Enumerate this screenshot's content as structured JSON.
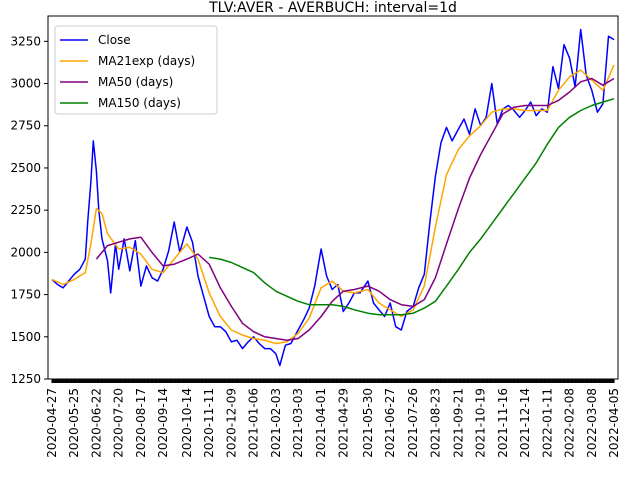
{
  "chart_data": {
    "type": "line",
    "title": "TLV:AVER - AVERBUCH: interval=1d",
    "xlabel": "",
    "ylabel": "",
    "xlim": [
      "2020-04-22",
      "2022-04-10"
    ],
    "ylim": [
      1250,
      3400
    ],
    "x_ticks": [
      "2020-04-27",
      "2020-05-25",
      "2020-06-22",
      "2020-07-20",
      "2020-08-17",
      "2020-09-14",
      "2020-10-14",
      "2020-11-11",
      "2020-12-09",
      "2021-01-06",
      "2021-02-03",
      "2021-03-03",
      "2021-04-01",
      "2021-04-29",
      "2021-05-30",
      "2021-06-27",
      "2021-07-26",
      "2021-08-23",
      "2021-09-21",
      "2021-10-19",
      "2021-11-16",
      "2021-12-14",
      "2022-01-11",
      "2022-02-08",
      "2022-03-08",
      "2022-04-05"
    ],
    "y_ticks": [
      1250,
      1500,
      1750,
      2000,
      2250,
      2500,
      2750,
      3000,
      3250
    ],
    "grid": false,
    "legend_position": "top-left",
    "series": [
      {
        "name": "Close",
        "color": "#0000ff",
        "points": [
          [
            "2020-04-27",
            1840
          ],
          [
            "2020-05-04",
            1810
          ],
          [
            "2020-05-11",
            1790
          ],
          [
            "2020-05-18",
            1830
          ],
          [
            "2020-05-25",
            1870
          ],
          [
            "2020-06-01",
            1900
          ],
          [
            "2020-06-08",
            1960
          ],
          [
            "2020-06-11",
            2180
          ],
          [
            "2020-06-15",
            2420
          ],
          [
            "2020-06-18",
            2660
          ],
          [
            "2020-06-22",
            2480
          ],
          [
            "2020-06-25",
            2250
          ],
          [
            "2020-06-29",
            2080
          ],
          [
            "2020-07-06",
            1950
          ],
          [
            "2020-07-10",
            1760
          ],
          [
            "2020-07-16",
            2050
          ],
          [
            "2020-07-20",
            1900
          ],
          [
            "2020-07-27",
            2080
          ],
          [
            "2020-08-03",
            1890
          ],
          [
            "2020-08-10",
            2070
          ],
          [
            "2020-08-17",
            1800
          ],
          [
            "2020-08-24",
            1920
          ],
          [
            "2020-08-31",
            1850
          ],
          [
            "2020-09-07",
            1830
          ],
          [
            "2020-09-14",
            1900
          ],
          [
            "2020-09-21",
            2010
          ],
          [
            "2020-09-28",
            2180
          ],
          [
            "2020-10-05",
            2000
          ],
          [
            "2020-10-14",
            2150
          ],
          [
            "2020-10-21",
            2060
          ],
          [
            "2020-10-28",
            1860
          ],
          [
            "2020-11-04",
            1740
          ],
          [
            "2020-11-11",
            1620
          ],
          [
            "2020-11-18",
            1560
          ],
          [
            "2020-11-25",
            1560
          ],
          [
            "2020-12-02",
            1530
          ],
          [
            "2020-12-09",
            1470
          ],
          [
            "2020-12-16",
            1480
          ],
          [
            "2020-12-23",
            1430
          ],
          [
            "2020-12-30",
            1470
          ],
          [
            "2021-01-06",
            1500
          ],
          [
            "2021-01-13",
            1460
          ],
          [
            "2021-01-20",
            1430
          ],
          [
            "2021-01-27",
            1430
          ],
          [
            "2021-02-03",
            1400
          ],
          [
            "2021-02-08",
            1330
          ],
          [
            "2021-02-15",
            1450
          ],
          [
            "2021-02-22",
            1460
          ],
          [
            "2021-03-03",
            1540
          ],
          [
            "2021-03-10",
            1600
          ],
          [
            "2021-03-17",
            1670
          ],
          [
            "2021-03-24",
            1800
          ],
          [
            "2021-04-01",
            2020
          ],
          [
            "2021-04-08",
            1860
          ],
          [
            "2021-04-15",
            1780
          ],
          [
            "2021-04-22",
            1810
          ],
          [
            "2021-04-29",
            1650
          ],
          [
            "2021-05-06",
            1700
          ],
          [
            "2021-05-13",
            1760
          ],
          [
            "2021-05-20",
            1760
          ],
          [
            "2021-05-30",
            1830
          ],
          [
            "2021-06-06",
            1700
          ],
          [
            "2021-06-13",
            1660
          ],
          [
            "2021-06-20",
            1620
          ],
          [
            "2021-06-27",
            1700
          ],
          [
            "2021-07-04",
            1560
          ],
          [
            "2021-07-11",
            1540
          ],
          [
            "2021-07-18",
            1650
          ],
          [
            "2021-07-26",
            1680
          ],
          [
            "2021-08-02",
            1790
          ],
          [
            "2021-08-09",
            1870
          ],
          [
            "2021-08-16",
            2180
          ],
          [
            "2021-08-23",
            2450
          ],
          [
            "2021-08-30",
            2650
          ],
          [
            "2021-09-06",
            2740
          ],
          [
            "2021-09-13",
            2660
          ],
          [
            "2021-09-21",
            2730
          ],
          [
            "2021-09-28",
            2790
          ],
          [
            "2021-10-05",
            2700
          ],
          [
            "2021-10-12",
            2850
          ],
          [
            "2021-10-19",
            2750
          ],
          [
            "2021-10-26",
            2800
          ],
          [
            "2021-11-02",
            3000
          ],
          [
            "2021-11-09",
            2760
          ],
          [
            "2021-11-16",
            2850
          ],
          [
            "2021-11-23",
            2870
          ],
          [
            "2021-11-30",
            2840
          ],
          [
            "2021-12-07",
            2800
          ],
          [
            "2021-12-14",
            2840
          ],
          [
            "2021-12-21",
            2890
          ],
          [
            "2021-12-28",
            2810
          ],
          [
            "2022-01-04",
            2850
          ],
          [
            "2022-01-11",
            2830
          ],
          [
            "2022-01-18",
            3100
          ],
          [
            "2022-01-25",
            2970
          ],
          [
            "2022-02-01",
            3230
          ],
          [
            "2022-02-08",
            3150
          ],
          [
            "2022-02-15",
            2980
          ],
          [
            "2022-02-22",
            3320
          ],
          [
            "2022-03-01",
            3050
          ],
          [
            "2022-03-08",
            2960
          ],
          [
            "2022-03-15",
            2830
          ],
          [
            "2022-03-22",
            2880
          ],
          [
            "2022-03-29",
            3280
          ],
          [
            "2022-04-05",
            3260
          ]
        ]
      },
      {
        "name": "MA21exp (days)",
        "color": "#ffa500",
        "points": [
          [
            "2020-04-27",
            1840
          ],
          [
            "2020-05-11",
            1810
          ],
          [
            "2020-05-25",
            1840
          ],
          [
            "2020-06-08",
            1880
          ],
          [
            "2020-06-15",
            2050
          ],
          [
            "2020-06-22",
            2260
          ],
          [
            "2020-06-29",
            2230
          ],
          [
            "2020-07-06",
            2110
          ],
          [
            "2020-07-20",
            2020
          ],
          [
            "2020-08-03",
            2030
          ],
          [
            "2020-08-17",
            1990
          ],
          [
            "2020-08-31",
            1900
          ],
          [
            "2020-09-14",
            1880
          ],
          [
            "2020-09-28",
            1960
          ],
          [
            "2020-10-14",
            2050
          ],
          [
            "2020-10-28",
            1960
          ],
          [
            "2020-11-11",
            1760
          ],
          [
            "2020-11-25",
            1620
          ],
          [
            "2020-12-09",
            1540
          ],
          [
            "2020-12-23",
            1510
          ],
          [
            "2021-01-06",
            1490
          ],
          [
            "2021-01-20",
            1480
          ],
          [
            "2021-02-03",
            1460
          ],
          [
            "2021-02-17",
            1470
          ],
          [
            "2021-03-03",
            1520
          ],
          [
            "2021-03-17",
            1610
          ],
          [
            "2021-04-01",
            1790
          ],
          [
            "2021-04-15",
            1830
          ],
          [
            "2021-04-29",
            1770
          ],
          [
            "2021-05-13",
            1760
          ],
          [
            "2021-05-30",
            1780
          ],
          [
            "2021-06-13",
            1700
          ],
          [
            "2021-06-27",
            1660
          ],
          [
            "2021-07-11",
            1620
          ],
          [
            "2021-07-26",
            1660
          ],
          [
            "2021-08-09",
            1800
          ],
          [
            "2021-08-23",
            2150
          ],
          [
            "2021-09-06",
            2460
          ],
          [
            "2021-09-21",
            2610
          ],
          [
            "2021-10-05",
            2690
          ],
          [
            "2021-10-19",
            2750
          ],
          [
            "2021-11-02",
            2830
          ],
          [
            "2021-11-16",
            2850
          ],
          [
            "2021-11-30",
            2850
          ],
          [
            "2021-12-14",
            2840
          ],
          [
            "2021-12-28",
            2840
          ],
          [
            "2022-01-11",
            2840
          ],
          [
            "2022-01-25",
            2960
          ],
          [
            "2022-02-08",
            3040
          ],
          [
            "2022-02-22",
            3080
          ],
          [
            "2022-03-08",
            3020
          ],
          [
            "2022-03-22",
            2960
          ],
          [
            "2022-04-05",
            3110
          ]
        ]
      },
      {
        "name": "MA50 (days)",
        "color": "#800080",
        "points": [
          [
            "2020-06-22",
            1960
          ],
          [
            "2020-07-06",
            2040
          ],
          [
            "2020-07-20",
            2060
          ],
          [
            "2020-08-03",
            2080
          ],
          [
            "2020-08-17",
            2090
          ],
          [
            "2020-08-31",
            2000
          ],
          [
            "2020-09-14",
            1920
          ],
          [
            "2020-09-28",
            1930
          ],
          [
            "2020-10-14",
            1960
          ],
          [
            "2020-10-28",
            1990
          ],
          [
            "2020-11-11",
            1930
          ],
          [
            "2020-11-25",
            1790
          ],
          [
            "2020-12-09",
            1680
          ],
          [
            "2020-12-23",
            1580
          ],
          [
            "2021-01-06",
            1530
          ],
          [
            "2021-01-20",
            1500
          ],
          [
            "2021-02-03",
            1490
          ],
          [
            "2021-02-17",
            1480
          ],
          [
            "2021-03-03",
            1490
          ],
          [
            "2021-03-17",
            1540
          ],
          [
            "2021-04-01",
            1620
          ],
          [
            "2021-04-15",
            1710
          ],
          [
            "2021-04-29",
            1770
          ],
          [
            "2021-05-13",
            1780
          ],
          [
            "2021-05-30",
            1800
          ],
          [
            "2021-06-13",
            1770
          ],
          [
            "2021-06-27",
            1720
          ],
          [
            "2021-07-11",
            1690
          ],
          [
            "2021-07-26",
            1680
          ],
          [
            "2021-08-09",
            1720
          ],
          [
            "2021-08-23",
            1850
          ],
          [
            "2021-09-06",
            2050
          ],
          [
            "2021-09-21",
            2260
          ],
          [
            "2021-10-05",
            2440
          ],
          [
            "2021-10-19",
            2580
          ],
          [
            "2021-11-02",
            2700
          ],
          [
            "2021-11-16",
            2820
          ],
          [
            "2021-11-30",
            2860
          ],
          [
            "2021-12-14",
            2870
          ],
          [
            "2021-12-28",
            2870
          ],
          [
            "2022-01-11",
            2870
          ],
          [
            "2022-01-25",
            2900
          ],
          [
            "2022-02-08",
            2950
          ],
          [
            "2022-02-22",
            3010
          ],
          [
            "2022-03-08",
            3030
          ],
          [
            "2022-03-22",
            2990
          ],
          [
            "2022-04-05",
            3030
          ]
        ]
      },
      {
        "name": "MA150 (days)",
        "color": "#008000",
        "points": [
          [
            "2020-11-11",
            1970
          ],
          [
            "2020-11-25",
            1960
          ],
          [
            "2020-12-09",
            1940
          ],
          [
            "2020-12-23",
            1910
          ],
          [
            "2021-01-06",
            1880
          ],
          [
            "2021-01-20",
            1820
          ],
          [
            "2021-02-03",
            1770
          ],
          [
            "2021-02-17",
            1740
          ],
          [
            "2021-03-03",
            1710
          ],
          [
            "2021-03-17",
            1690
          ],
          [
            "2021-04-01",
            1690
          ],
          [
            "2021-04-15",
            1690
          ],
          [
            "2021-04-29",
            1680
          ],
          [
            "2021-05-13",
            1660
          ],
          [
            "2021-05-30",
            1640
          ],
          [
            "2021-06-13",
            1630
          ],
          [
            "2021-06-27",
            1630
          ],
          [
            "2021-07-11",
            1630
          ],
          [
            "2021-07-26",
            1640
          ],
          [
            "2021-08-09",
            1670
          ],
          [
            "2021-08-23",
            1710
          ],
          [
            "2021-09-06",
            1800
          ],
          [
            "2021-09-21",
            1900
          ],
          [
            "2021-10-05",
            2000
          ],
          [
            "2021-10-19",
            2080
          ],
          [
            "2021-11-02",
            2170
          ],
          [
            "2021-11-16",
            2260
          ],
          [
            "2021-11-30",
            2350
          ],
          [
            "2021-12-14",
            2440
          ],
          [
            "2021-12-28",
            2530
          ],
          [
            "2022-01-11",
            2640
          ],
          [
            "2022-01-25",
            2740
          ],
          [
            "2022-02-08",
            2800
          ],
          [
            "2022-02-22",
            2840
          ],
          [
            "2022-03-08",
            2870
          ],
          [
            "2022-03-22",
            2890
          ],
          [
            "2022-04-05",
            2910
          ]
        ]
      }
    ]
  }
}
